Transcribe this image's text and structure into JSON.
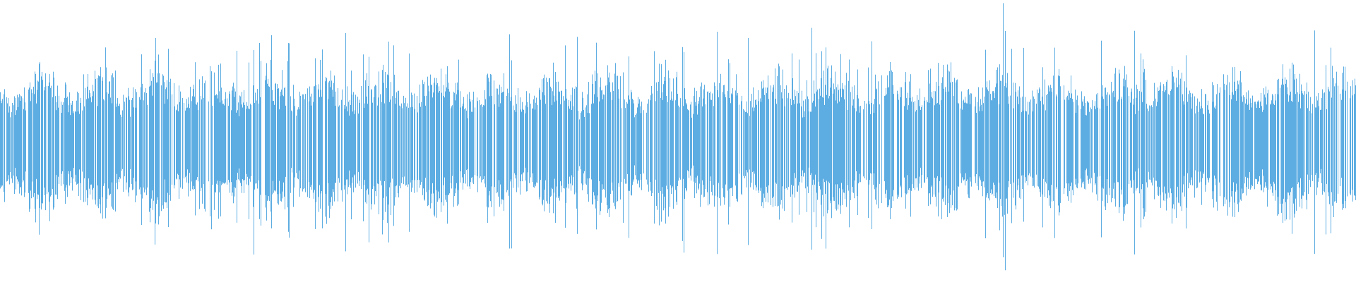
{
  "waveform": {
    "color": "#5dade2",
    "background": "#ffffff",
    "progress": 0
  }
}
